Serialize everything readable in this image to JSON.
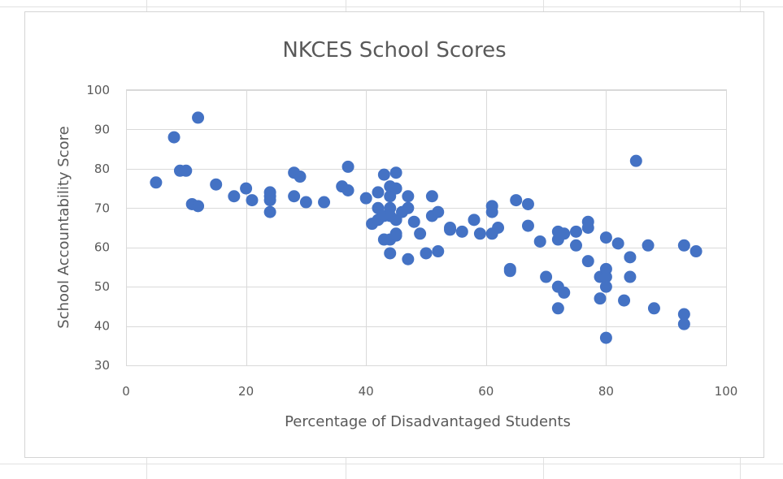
{
  "chart_data": {
    "type": "scatter",
    "title": "NKCES School Scores",
    "xlabel": "Percentage of Disadvantaged Students",
    "ylabel": "School Accountability Score",
    "xlim": [
      0,
      100
    ],
    "ylim": [
      30,
      100
    ],
    "xticks": [
      0,
      20,
      40,
      60,
      80,
      100
    ],
    "yticks": [
      30,
      40,
      50,
      60,
      70,
      80,
      90,
      100
    ],
    "grid": true,
    "legend": "none",
    "marker_color": "#4472c4",
    "points": [
      [
        5,
        76.5
      ],
      [
        8,
        88
      ],
      [
        9,
        79.5
      ],
      [
        10,
        79.5
      ],
      [
        11,
        71
      ],
      [
        12,
        93
      ],
      [
        12,
        70.5
      ],
      [
        15,
        76
      ],
      [
        18,
        73
      ],
      [
        20,
        75
      ],
      [
        21,
        72
      ],
      [
        24,
        74
      ],
      [
        24,
        73
      ],
      [
        24,
        72
      ],
      [
        24,
        69
      ],
      [
        28,
        79
      ],
      [
        28,
        73
      ],
      [
        29,
        78
      ],
      [
        30,
        71.5
      ],
      [
        33,
        71.5
      ],
      [
        36,
        75.5
      ],
      [
        37,
        80.5
      ],
      [
        37,
        74.5
      ],
      [
        40,
        72.5
      ],
      [
        41,
        66
      ],
      [
        42,
        74
      ],
      [
        42,
        70
      ],
      [
        42,
        67
      ],
      [
        43,
        78.5
      ],
      [
        43,
        68
      ],
      [
        43,
        62
      ],
      [
        44,
        75.5
      ],
      [
        44,
        73
      ],
      [
        44,
        70
      ],
      [
        44,
        68
      ],
      [
        44,
        62
      ],
      [
        44,
        58.5
      ],
      [
        45,
        79
      ],
      [
        45,
        75
      ],
      [
        45,
        67
      ],
      [
        45,
        63.5
      ],
      [
        45,
        63
      ],
      [
        46,
        69
      ],
      [
        47,
        73
      ],
      [
        47,
        70
      ],
      [
        47,
        57
      ],
      [
        48,
        66.5
      ],
      [
        49,
        63.5
      ],
      [
        50,
        58.5
      ],
      [
        51,
        73
      ],
      [
        51,
        68
      ],
      [
        52,
        69
      ],
      [
        52,
        59
      ],
      [
        54,
        65
      ],
      [
        54,
        64.5
      ],
      [
        56,
        64
      ],
      [
        58,
        67
      ],
      [
        59,
        63.5
      ],
      [
        61,
        70.5
      ],
      [
        61,
        69
      ],
      [
        61,
        63.5
      ],
      [
        62,
        65
      ],
      [
        64,
        54.5
      ],
      [
        64,
        54
      ],
      [
        65,
        72
      ],
      [
        67,
        71
      ],
      [
        67,
        65.5
      ],
      [
        69,
        61.5
      ],
      [
        70,
        52.5
      ],
      [
        72,
        64
      ],
      [
        72,
        62
      ],
      [
        72,
        50
      ],
      [
        72,
        44.5
      ],
      [
        73,
        63.5
      ],
      [
        73,
        48.5
      ],
      [
        75,
        64
      ],
      [
        75,
        60.5
      ],
      [
        77,
        66.5
      ],
      [
        77,
        65
      ],
      [
        77,
        56.5
      ],
      [
        79,
        52.5
      ],
      [
        79,
        47
      ],
      [
        80,
        62.5
      ],
      [
        80,
        54.5
      ],
      [
        80,
        52.5
      ],
      [
        80,
        50
      ],
      [
        80,
        37
      ],
      [
        82,
        61
      ],
      [
        83,
        46.5
      ],
      [
        84,
        57.5
      ],
      [
        84,
        52.5
      ],
      [
        85,
        82
      ],
      [
        87,
        60.5
      ],
      [
        88,
        44.5
      ],
      [
        93,
        60.5
      ],
      [
        93,
        43
      ],
      [
        93,
        40.5
      ],
      [
        95,
        59
      ]
    ]
  }
}
